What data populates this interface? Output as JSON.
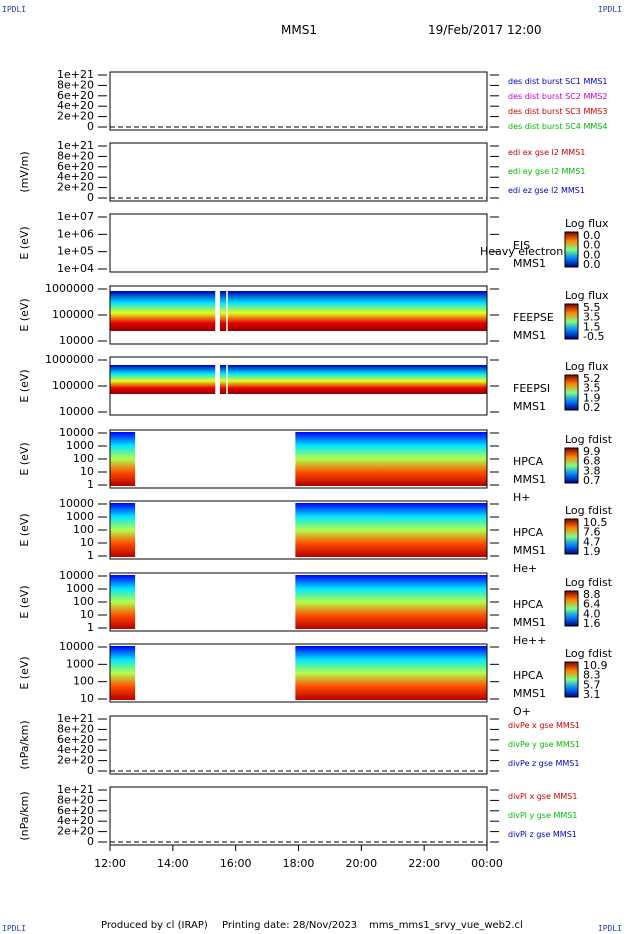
{
  "corners": [
    "IPDLI",
    "IPDLI",
    "IPDLI",
    "IPDLI"
  ],
  "header": {
    "spacecraft": "MMS1",
    "datetime": "19/Feb/2017 12:00"
  },
  "footer": {
    "producer": "Produced by cl (IRAP)",
    "printing": "Printing date: 28/Nov/2023",
    "file": "mms_mms1_srvy_vue_web2.cl"
  },
  "chart_data": {
    "type": "heatmap",
    "x_ticks": [
      "12:00",
      "14:00",
      "16:00",
      "18:00",
      "20:00",
      "22:00",
      "00:00"
    ],
    "x_range_hours": [
      12,
      24
    ],
    "panels": [
      {
        "kind": "line",
        "ylabel": "",
        "yticks": [
          "1e+21",
          "8e+20",
          "6e+20",
          "4e+20",
          "2e+20",
          "0"
        ],
        "legend": [
          {
            "text": "des dist burst SC1 MMS1",
            "color": "#0000cc"
          },
          {
            "text": "des dist burst SC2 MMS2",
            "color": "#cc00cc"
          },
          {
            "text": "des dist burst SC3 MMS3",
            "color": "#cc0000"
          },
          {
            "text": "des dist burst SC4 MMS4",
            "color": "#00bb00"
          }
        ]
      },
      {
        "kind": "line",
        "ylabel": "(mV/m)",
        "yticks": [
          "1e+21",
          "8e+20",
          "6e+20",
          "4e+20",
          "2e+20",
          "0"
        ],
        "legend": [
          {
            "text": "edi ex gse l2 MMS1",
            "color": "#cc0000"
          },
          {
            "text": "edi ey gse l2 MMS1",
            "color": "#00bb00"
          },
          {
            "text": "edi ez gse l2 MMS1",
            "color": "#0000cc"
          }
        ]
      },
      {
        "kind": "spec",
        "ylabel": "E (eV)",
        "yticks": [
          "1e+07",
          "1e+06",
          "1e+05",
          "1e+04"
        ],
        "labels": [
          "EIS",
          "MMS1"
        ],
        "overlay": "Heavy electron to",
        "cbar_title": "Log flux",
        "cbar_ticks": [
          "0.0",
          "0.0",
          "0.0",
          "0.0"
        ],
        "spans": []
      },
      {
        "kind": "spec",
        "ylabel": "E (eV)",
        "yticks": [
          "1000000",
          "100000",
          "10000"
        ],
        "labels": [
          "FEEPSE",
          "MMS1"
        ],
        "cbar_title": "Log flux",
        "cbar_ticks": [
          "5.5",
          "3.5",
          "1.5",
          "-0.5"
        ],
        "spans": [
          [
            12.0,
            24.0
          ]
        ],
        "gaps": [
          [
            15.35,
            15.5
          ],
          [
            15.7,
            15.75
          ]
        ]
      },
      {
        "kind": "spec",
        "ylabel": "E (eV)",
        "yticks": [
          "1000000",
          "100000",
          "10000"
        ],
        "labels": [
          "FEEPSI",
          "MMS1"
        ],
        "cbar_title": "Log flux",
        "cbar_ticks": [
          "5.2",
          "3.5",
          "1.9",
          "0.2"
        ],
        "spans": [
          [
            12.0,
            24.0
          ]
        ],
        "gaps": [
          [
            15.35,
            15.5
          ],
          [
            15.7,
            15.75
          ]
        ]
      },
      {
        "kind": "spec",
        "ylabel": "E (eV)",
        "yticks": [
          "10000",
          "1000",
          "100",
          "10",
          "1"
        ],
        "labels": [
          "HPCA",
          "MMS1",
          "H+"
        ],
        "cbar_title": "Log fdist",
        "cbar_ticks": [
          "9.9",
          "6.8",
          "3.8",
          "0.7"
        ],
        "spans": [
          [
            12.0,
            12.8
          ],
          [
            17.9,
            24.0
          ]
        ]
      },
      {
        "kind": "spec",
        "ylabel": "E (eV)",
        "yticks": [
          "10000",
          "1000",
          "100",
          "10",
          "1"
        ],
        "labels": [
          "HPCA",
          "MMS1",
          "He+"
        ],
        "cbar_title": "Log fdist",
        "cbar_ticks": [
          "10.5",
          "7.6",
          "4.7",
          "1.9"
        ],
        "spans": [
          [
            12.0,
            12.8
          ],
          [
            17.9,
            24.0
          ]
        ]
      },
      {
        "kind": "spec",
        "ylabel": "E (eV)",
        "yticks": [
          "10000",
          "1000",
          "100",
          "10",
          "1"
        ],
        "labels": [
          "HPCA",
          "MMS1",
          "He++"
        ],
        "cbar_title": "Log fdist",
        "cbar_ticks": [
          "8.8",
          "6.4",
          "4.0",
          "1.6"
        ],
        "spans": [
          [
            12.0,
            12.8
          ],
          [
            17.9,
            24.0
          ]
        ]
      },
      {
        "kind": "spec",
        "ylabel": "E (eV)",
        "yticks": [
          "10000",
          "1000",
          "100",
          "10"
        ],
        "labels": [
          "HPCA",
          "MMS1",
          "O+"
        ],
        "cbar_title": "Log fdist",
        "cbar_ticks": [
          "10.9",
          "8.3",
          "5.7",
          "3.1"
        ],
        "spans": [
          [
            12.0,
            12.8
          ],
          [
            17.9,
            24.0
          ]
        ]
      },
      {
        "kind": "line",
        "ylabel": "(nPa/km)",
        "yticks": [
          "1e+21",
          "8e+20",
          "6e+20",
          "4e+20",
          "2e+20",
          "0"
        ],
        "legend": [
          {
            "text": "divPe x gse MMS1",
            "color": "#cc0000"
          },
          {
            "text": "divPe y gse MMS1",
            "color": "#00bb00"
          },
          {
            "text": "divPe z gse MMS1",
            "color": "#0000cc"
          }
        ]
      },
      {
        "kind": "line",
        "ylabel": "(nPa/km)",
        "yticks": [
          "1e+21",
          "8e+20",
          "6e+20",
          "4e+20",
          "2e+20",
          "0"
        ],
        "legend": [
          {
            "text": "divPi x gse MMS1",
            "color": "#cc0000"
          },
          {
            "text": "divPi y gse MMS1",
            "color": "#00bb00"
          },
          {
            "text": "divPi z gse MMS1",
            "color": "#0000cc"
          }
        ]
      }
    ]
  }
}
